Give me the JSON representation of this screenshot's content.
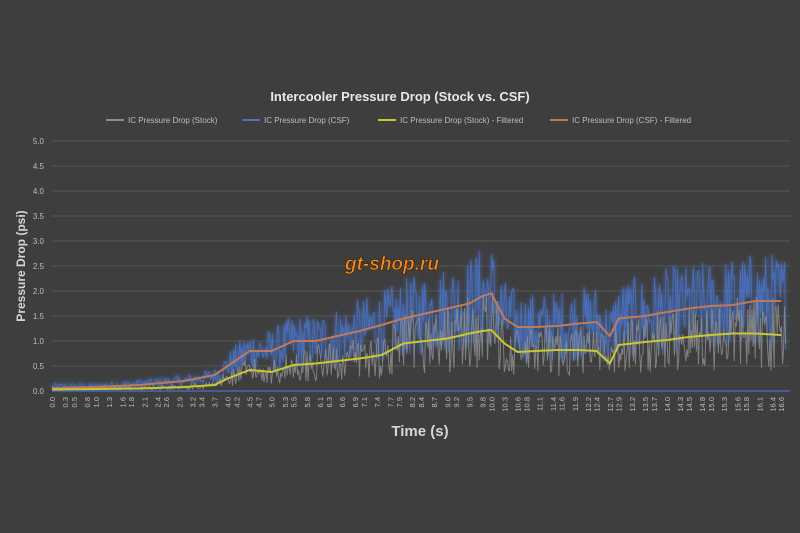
{
  "chart_data": {
    "type": "line",
    "title": "Intercooler Pressure Drop (Stock vs. CSF)",
    "xlabel": "Time (s)",
    "ylabel": "Pressure Drop (psi)",
    "ylim": [
      0,
      5
    ],
    "yticks": [
      "0.0",
      "0.5",
      "1.0",
      "1.5",
      "2.0",
      "2.5",
      "3.0",
      "3.5",
      "4.0",
      "4.5",
      "5.0"
    ],
    "xticks": [
      "0.0",
      "0.3",
      "0.5",
      "0.8",
      "1.0",
      "1.3",
      "1.6",
      "1.8",
      "2.1",
      "2.4",
      "2.6",
      "2.9",
      "3.2",
      "3.4",
      "3.7",
      "4.0",
      "4.2",
      "4.5",
      "4.7",
      "5.0",
      "5.3",
      "5.5",
      "5.8",
      "6.1",
      "6.3",
      "6.6",
      "6.9",
      "7.1",
      "7.4",
      "7.7",
      "7.9",
      "8.2",
      "8.4",
      "8.7",
      "9.0",
      "9.2",
      "9.5",
      "9.8",
      "10.0",
      "10.3",
      "10.6",
      "10.8",
      "11.1",
      "11.4",
      "11.6",
      "11.9",
      "12.2",
      "12.4",
      "12.7",
      "12.9",
      "13.2",
      "13.5",
      "13.7",
      "14.0",
      "14.3",
      "14.5",
      "14.8",
      "15.0",
      "15.3",
      "15.6",
      "15.8",
      "16.1",
      "16.4",
      "16.6"
    ],
    "grid": "horizontal",
    "legend_position": "top",
    "series": [
      {
        "name": "IC Pressure Drop (Stock)",
        "color": "#8c8c8c",
        "x": [
          0,
          1,
          2,
          3,
          3.7,
          4,
          4.5,
          5,
          5.5,
          6,
          6.5,
          7,
          7.5,
          8,
          8.5,
          9,
          9.5,
          9.8,
          10,
          10.3,
          10.6,
          11,
          11.5,
          12,
          12.4,
          12.7,
          12.9,
          13.5,
          14,
          14.5,
          15,
          15.5,
          16,
          16.6
        ],
        "values": [
          0.05,
          0.05,
          0.06,
          0.08,
          0.12,
          0.25,
          0.4,
          0.38,
          0.5,
          0.55,
          0.6,
          0.65,
          0.72,
          0.95,
          1.0,
          1.05,
          1.15,
          1.2,
          1.25,
          0.95,
          0.75,
          0.78,
          0.8,
          0.82,
          0.8,
          0.55,
          0.9,
          0.95,
          1.0,
          1.05,
          1.1,
          1.15,
          1.15,
          1.15
        ]
      },
      {
        "name": "IC Pressure Drop (CSF)",
        "color": "#4a72c4",
        "x": [
          0,
          1,
          2,
          3,
          3.7,
          4,
          4.5,
          5,
          5.5,
          6,
          6.5,
          7,
          7.5,
          8,
          8.5,
          9,
          9.5,
          9.8,
          10,
          10.3,
          10.6,
          11,
          11.5,
          12,
          12.4,
          12.7,
          12.9,
          13.5,
          14,
          14.5,
          15,
          15.5,
          16,
          16.6
        ],
        "values": [
          0.1,
          0.1,
          0.15,
          0.2,
          0.3,
          0.5,
          0.8,
          0.8,
          1.0,
          1.0,
          1.1,
          1.2,
          1.3,
          1.45,
          1.55,
          1.65,
          1.75,
          1.9,
          1.95,
          1.45,
          1.3,
          1.28,
          1.3,
          1.35,
          1.4,
          1.1,
          1.45,
          1.5,
          1.6,
          1.65,
          1.7,
          1.75,
          1.8,
          1.8
        ]
      },
      {
        "name": "IC Pressure Drop (Stock) - Filtered",
        "color": "#c8c832",
        "x": [
          0,
          1,
          2,
          3,
          3.7,
          4,
          4.5,
          5,
          5.5,
          6,
          6.5,
          7,
          7.5,
          8,
          8.5,
          9,
          9.5,
          9.8,
          10,
          10.3,
          10.6,
          11,
          11.5,
          12,
          12.4,
          12.7,
          12.9,
          13.5,
          14,
          14.5,
          15,
          15.5,
          16,
          16.6
        ],
        "values": [
          0.03,
          0.04,
          0.05,
          0.08,
          0.12,
          0.25,
          0.42,
          0.38,
          0.52,
          0.55,
          0.6,
          0.65,
          0.72,
          0.95,
          1.0,
          1.05,
          1.15,
          1.2,
          1.22,
          0.95,
          0.78,
          0.8,
          0.82,
          0.82,
          0.8,
          0.55,
          0.92,
          0.98,
          1.02,
          1.08,
          1.12,
          1.15,
          1.15,
          1.12
        ]
      },
      {
        "name": "IC Pressure Drop (CSF) - Filtered",
        "color": "#c07a5a",
        "x": [
          0,
          1,
          2,
          3,
          3.7,
          4,
          4.5,
          5,
          5.5,
          6,
          6.5,
          7,
          7.5,
          8,
          8.5,
          9,
          9.5,
          9.8,
          10,
          10.3,
          10.6,
          11,
          11.5,
          12,
          12.4,
          12.7,
          12.9,
          13.5,
          14,
          14.5,
          15,
          15.5,
          16,
          16.6
        ],
        "values": [
          0.06,
          0.08,
          0.12,
          0.2,
          0.32,
          0.5,
          0.8,
          0.8,
          1.0,
          1.0,
          1.1,
          1.2,
          1.32,
          1.45,
          1.55,
          1.65,
          1.75,
          1.9,
          1.95,
          1.45,
          1.28,
          1.28,
          1.3,
          1.35,
          1.38,
          1.1,
          1.45,
          1.5,
          1.58,
          1.65,
          1.7,
          1.72,
          1.8,
          1.8
        ]
      }
    ]
  },
  "watermark": {
    "text": "gt-shop.ru",
    "color": "#f28c1e"
  }
}
